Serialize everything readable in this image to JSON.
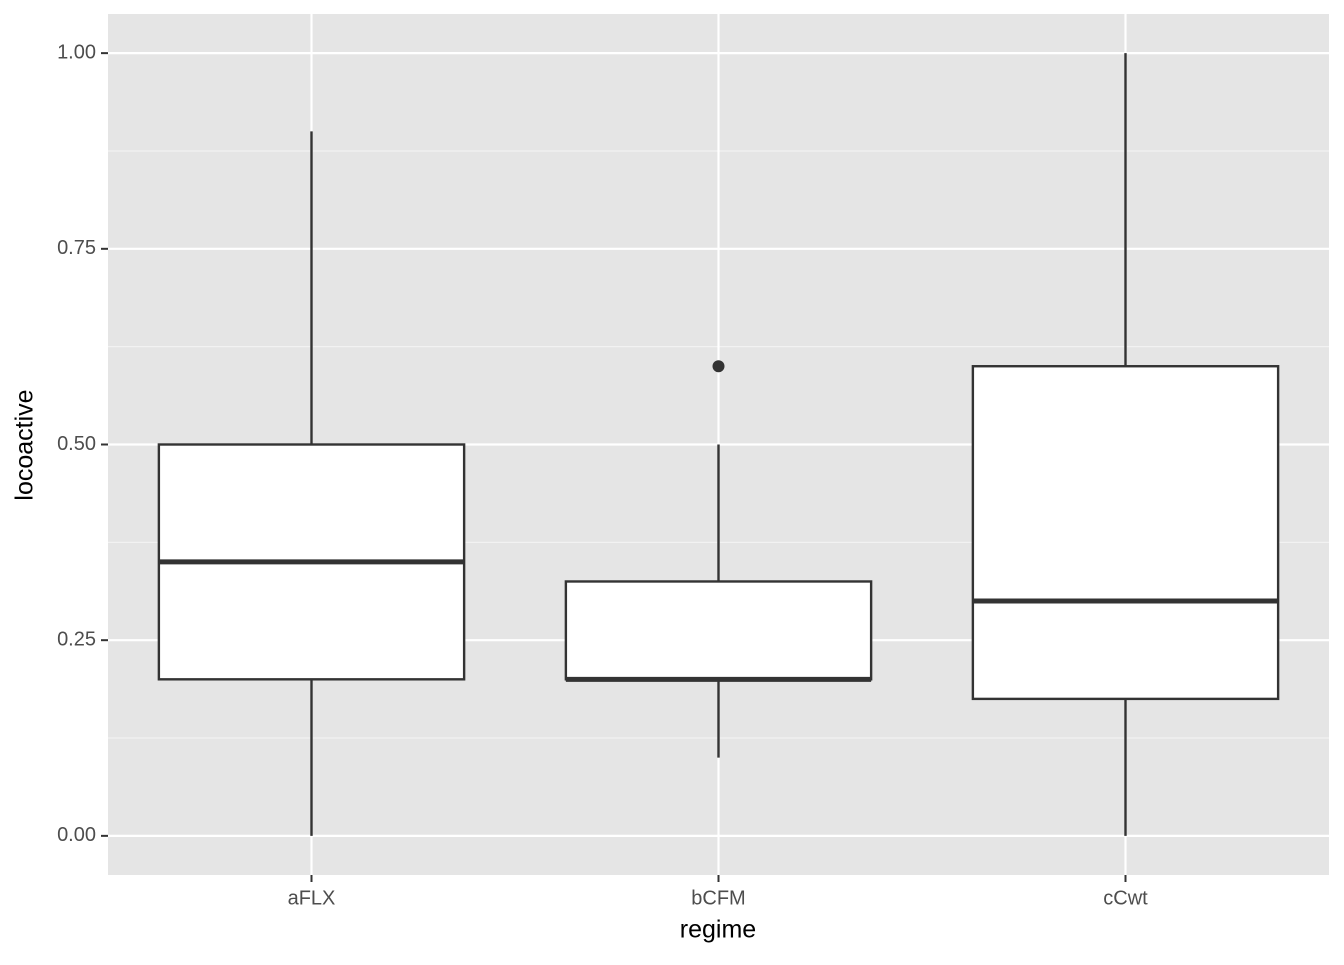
{
  "chart_data": {
    "type": "box",
    "x_label": "regime",
    "y_label": "locoactive",
    "categories": [
      "aFLX",
      "bCFM",
      "cCwt"
    ],
    "boxes": [
      {
        "min": 0,
        "q1": 0.2,
        "median": 0.35,
        "q3": 0.5,
        "max": 0.9
      },
      {
        "min": 0.1,
        "q1": 0.2,
        "median": 0.2,
        "q3": 0.325,
        "max": 0.5,
        "outliers": [
          0.6
        ]
      },
      {
        "min": 0,
        "q1": 0.175,
        "median": 0.3,
        "q3": 0.6,
        "max": 1.0
      }
    ],
    "box_fill": "#ffffff",
    "line_color": "#333333",
    "panel_color": "#e5e5e5",
    "ylim": [
      -0.05,
      1.05
    ],
    "yticks": [
      {
        "value": 0,
        "label": "0.00"
      },
      0.25,
      {
        "value": 0.5,
        "label": "0.50"
      },
      0.75,
      {
        "value": 1,
        "label": "1.00"
      }
    ],
    "grid": true,
    "minor_grid": true
  }
}
